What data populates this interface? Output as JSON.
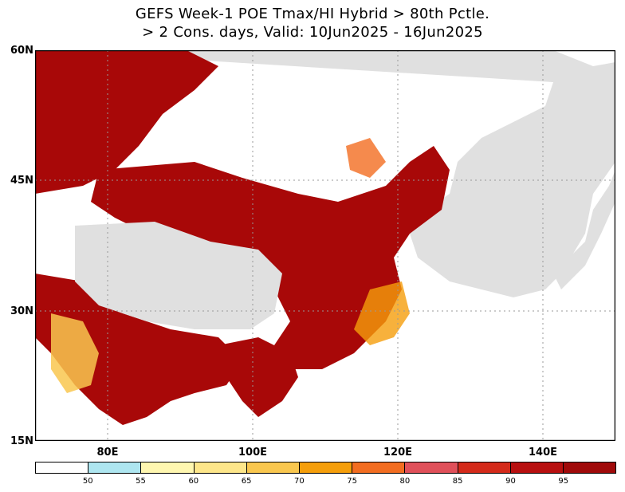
{
  "title": {
    "line1": "GEFS Week-1 POE Tmax/HI Hybrid > 80th Pctle.",
    "line2": "> 2 Cons. days, Valid: 10Jun2025 - 16Jun2025"
  },
  "axes": {
    "lat_labels": [
      "60N",
      "45N",
      "30N",
      "15N"
    ],
    "lon_labels": [
      "80E",
      "100E",
      "120E",
      "140E"
    ]
  },
  "colorbar": {
    "labels": [
      "50",
      "55",
      "60",
      "65",
      "70",
      "75",
      "80",
      "85",
      "90",
      "95"
    ],
    "colors": [
      "#ffffff",
      "#aee6f0",
      "#fff7b0",
      "#fde68a",
      "#f9c74f",
      "#f59e0b",
      "#f26d21",
      "#e0505a",
      "#d42a1a",
      "#b81010",
      "#a00a0a"
    ]
  },
  "map": {
    "land_color": "#e0e0e0",
    "water_color": "#ffffff",
    "heat_color": "#a80808"
  }
}
